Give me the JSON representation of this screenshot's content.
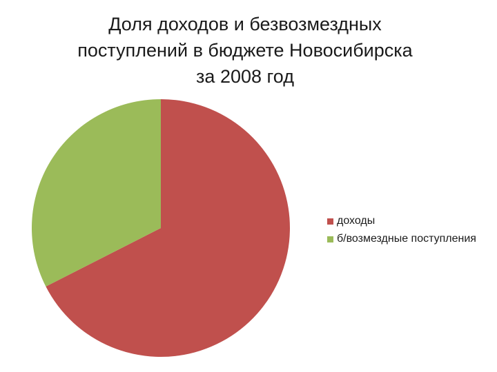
{
  "chart_data": {
    "type": "pie",
    "title_lines": [
      "Доля доходов и безвозмездных",
      "поступлений в бюджете Новосибирска",
      "за 2008 год"
    ],
    "slices": [
      {
        "label": "доходы",
        "value": 67.5,
        "color": "#c0504d"
      },
      {
        "label": "б/возмездные поступления",
        "value": 32.5,
        "color": "#9bbb59"
      }
    ],
    "start_angle_deg": 0,
    "direction": "clockwise",
    "legend_position": "right"
  }
}
